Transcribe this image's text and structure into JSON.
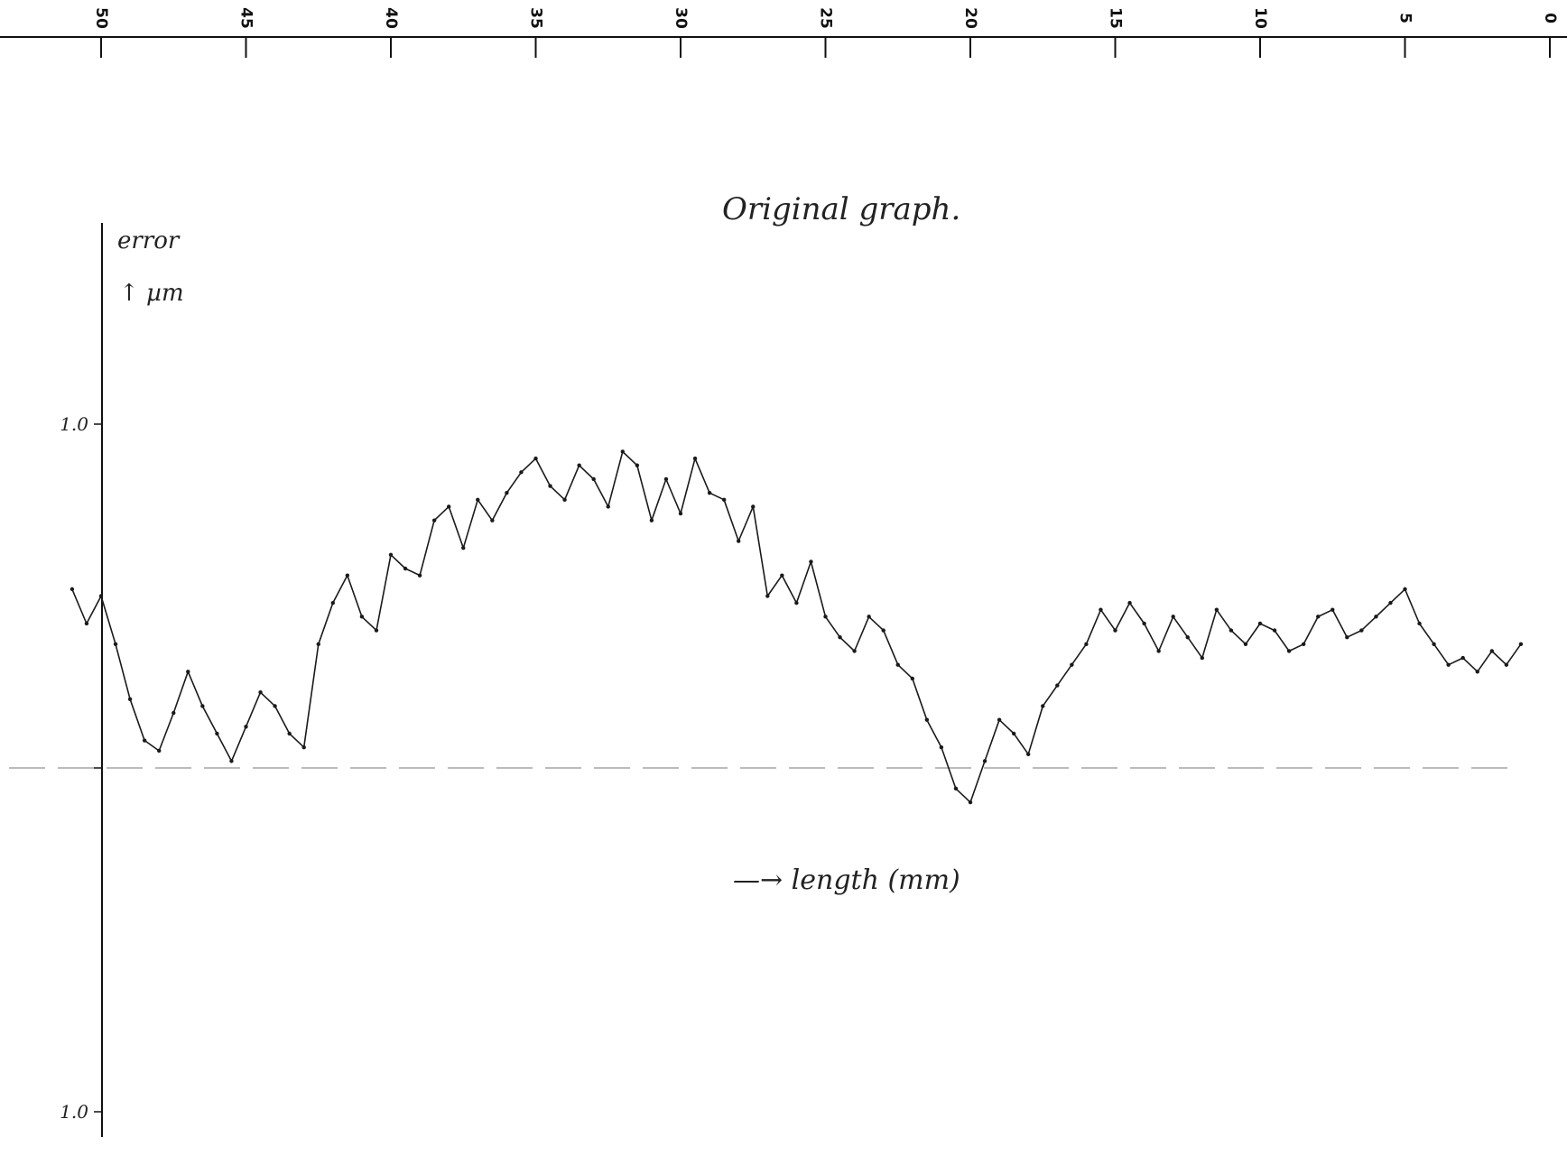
{
  "chart_data": {
    "type": "line",
    "title": "Original graph.",
    "ylabel_line1": "error",
    "ylabel_line2": "↑ µm",
    "xlabel": "—→ length (mm)",
    "x_axis": {
      "reversed": true,
      "ticks": [
        50,
        45,
        40,
        35,
        30,
        25,
        20,
        15,
        10,
        5,
        0
      ],
      "tick_labels": [
        "50",
        "45",
        "40",
        "35",
        "30",
        "25",
        "20",
        "15",
        "10",
        "5",
        "0"
      ],
      "range": [
        0,
        51
      ]
    },
    "y_axis": {
      "tick_labels": [
        {
          "value": 1.0,
          "label": "1.0"
        },
        {
          "value": 0.0,
          "label": ""
        },
        {
          "value": -1.0,
          "label": "1.0"
        }
      ],
      "range": [
        -1.0,
        1.55
      ]
    },
    "grid": false,
    "legend": "none",
    "color": "#1a1a1a",
    "series": [
      {
        "x": [
          51.0,
          50.5,
          50.0,
          49.5,
          49.0,
          48.5,
          48.0,
          47.5,
          47.0,
          46.5,
          46.0,
          45.5,
          45.0,
          44.5,
          44.0,
          43.5,
          43.0,
          42.5,
          42.0,
          41.5,
          41.0,
          40.5,
          40.0,
          39.5,
          39.0,
          38.5,
          38.0,
          37.5,
          37.0,
          36.5,
          36.0,
          35.5,
          35.0,
          34.5,
          34.0,
          33.5,
          33.0,
          32.5,
          32.0,
          31.5,
          31.0,
          30.5,
          30.0,
          29.5,
          29.0,
          28.5,
          28.0,
          27.5,
          27.0,
          26.5,
          26.0,
          25.5,
          25.0,
          24.5,
          24.0,
          23.5,
          23.0,
          22.5,
          22.0,
          21.5,
          21.0,
          20.5,
          20.0,
          19.5,
          19.0,
          18.5,
          18.0,
          17.5,
          17.0,
          16.5,
          16.0,
          15.5,
          15.0,
          14.5,
          14.0,
          13.5,
          13.0,
          12.5,
          12.0,
          11.5,
          11.0,
          10.5,
          10.0,
          9.5,
          9.0,
          8.5,
          8.0,
          7.5,
          7.0,
          6.5,
          6.0,
          5.5,
          5.0,
          4.5,
          4.0,
          3.5,
          3.0,
          2.5,
          2.0,
          1.5,
          1.0
        ],
        "y": [
          0.52,
          0.42,
          0.5,
          0.36,
          0.2,
          0.08,
          0.05,
          0.16,
          0.28,
          0.18,
          0.1,
          0.02,
          0.12,
          0.22,
          0.18,
          0.1,
          0.06,
          0.36,
          0.48,
          0.56,
          0.44,
          0.4,
          0.62,
          0.58,
          0.56,
          0.72,
          0.76,
          0.64,
          0.78,
          0.72,
          0.8,
          0.86,
          0.9,
          0.82,
          0.78,
          0.88,
          0.84,
          0.76,
          0.92,
          0.88,
          0.72,
          0.84,
          0.74,
          0.9,
          0.8,
          0.78,
          0.66,
          0.76,
          0.5,
          0.56,
          0.48,
          0.6,
          0.44,
          0.38,
          0.34,
          0.44,
          0.4,
          0.3,
          0.26,
          0.14,
          0.06,
          -0.06,
          -0.1,
          0.02,
          0.14,
          0.1,
          0.04,
          0.18,
          0.24,
          0.3,
          0.36,
          0.46,
          0.4,
          0.48,
          0.42,
          0.34,
          0.44,
          0.38,
          0.32,
          0.46,
          0.4,
          0.36,
          0.42,
          0.4,
          0.34,
          0.36,
          0.44,
          0.46,
          0.38,
          0.4,
          0.44,
          0.48,
          0.52,
          0.42,
          0.36,
          0.3,
          0.32,
          0.28,
          0.34,
          0.3,
          0.36
        ]
      }
    ]
  }
}
